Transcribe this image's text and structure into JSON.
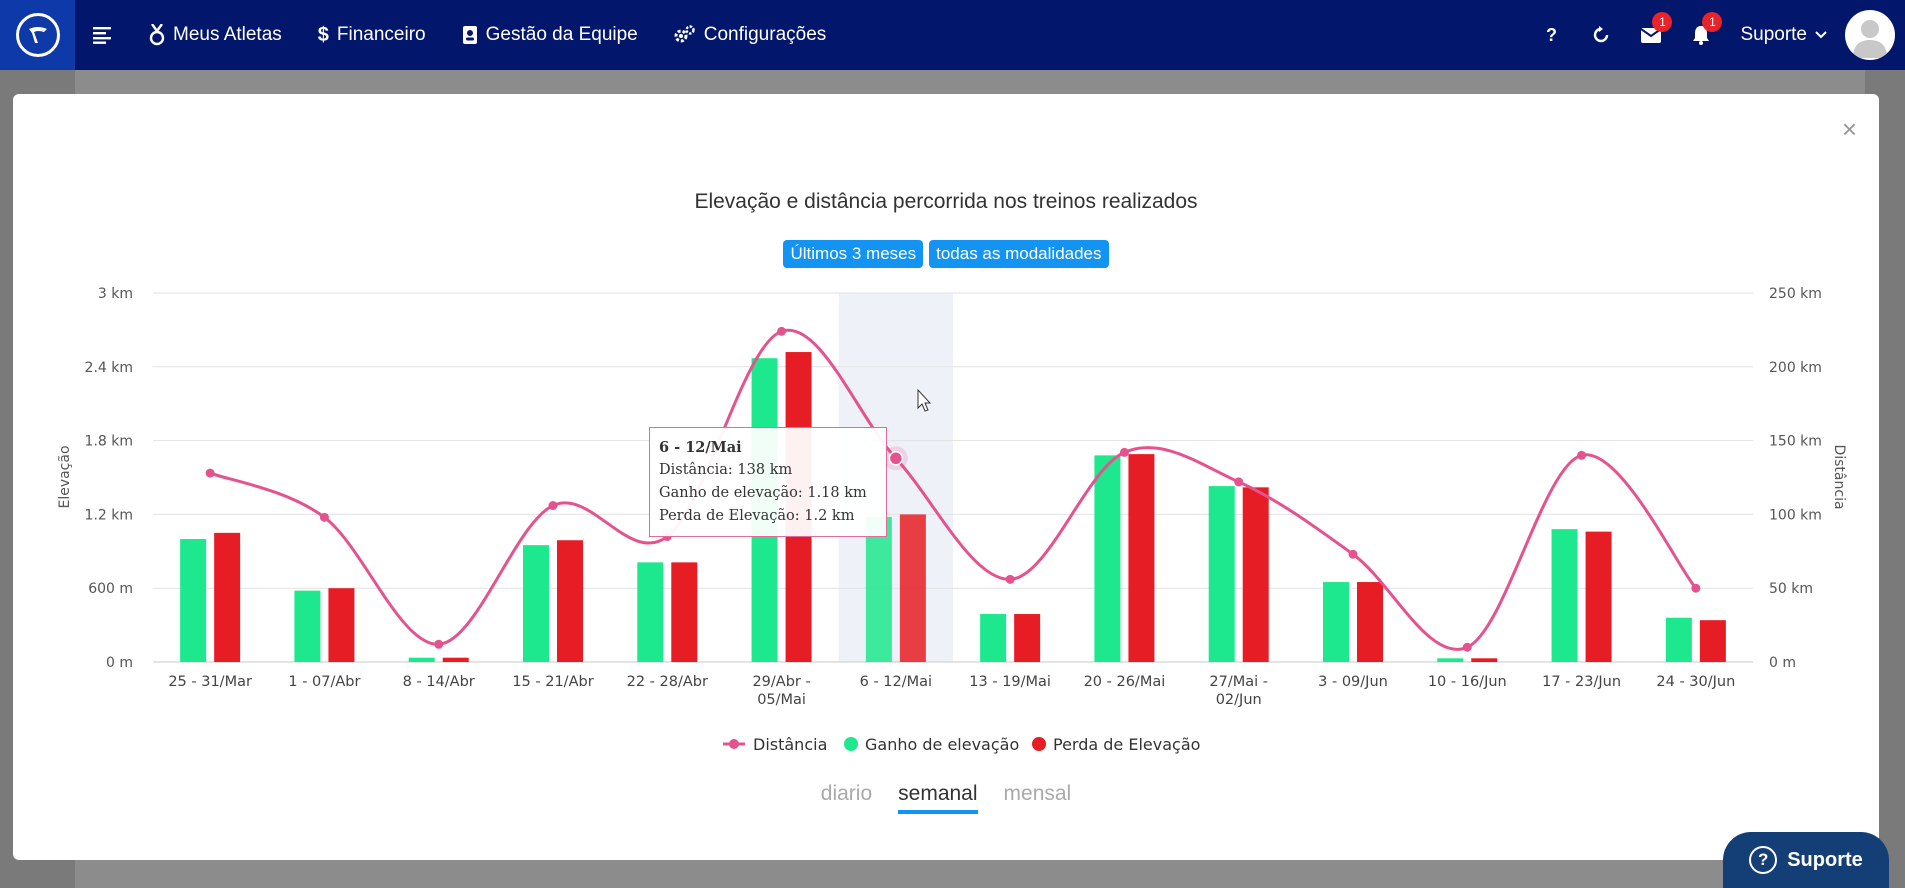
{
  "navbar": {
    "items": [
      {
        "label": "Meus Atletas"
      },
      {
        "label": "Financeiro"
      },
      {
        "label": "Gestão da Equipe"
      },
      {
        "label": "Configurações"
      }
    ],
    "help_label": "?",
    "messages_badge": "1",
    "notifications_badge": "1",
    "user_label": "Suporte"
  },
  "modal": {
    "close_label": "×",
    "title": "Elevação e distância percorrida nos treinos realizados",
    "filters": [
      "Últimos 3 meses",
      "todas as modalidades"
    ],
    "period_tabs": [
      "diario",
      "semanal",
      "mensal"
    ],
    "active_period": "semanal"
  },
  "tooltip": {
    "title": "6 - 12/Mai",
    "line1": "Distância: 138 km",
    "line2": "Ganho de elevação: 1.18 km",
    "line3": "Perda de Elevação: 1.2 km"
  },
  "support_button": {
    "label": "Suporte"
  },
  "colors": {
    "gain": "#1de88d",
    "loss": "#e71d25",
    "distance": "#e5538f",
    "navbar": "#02176b",
    "accent": "#1394f2"
  },
  "chart_data": {
    "type": "bar",
    "categories": [
      [
        "25 - 31/Mar"
      ],
      [
        "1 - 07/Abr"
      ],
      [
        "8 - 14/Abr"
      ],
      [
        "15 - 21/Abr"
      ],
      [
        "22 - 28/Abr"
      ],
      [
        "29/Abr -",
        "05/Mai"
      ],
      [
        "6 - 12/Mai"
      ],
      [
        "13 - 19/Mai"
      ],
      [
        "20 - 26/Mai"
      ],
      [
        "27/Mai -",
        "02/Jun"
      ],
      [
        "3 - 09/Jun"
      ],
      [
        "10 - 16/Jun"
      ],
      [
        "17 - 23/Jun"
      ],
      [
        "24 - 30/Jun"
      ]
    ],
    "series": [
      {
        "name": "Ganho de elevação",
        "axis": "left",
        "kind": "bar",
        "values": [
          1.0,
          0.58,
          0.035,
          0.95,
          0.81,
          2.47,
          1.18,
          0.39,
          1.68,
          1.43,
          0.65,
          0.03,
          1.08,
          0.36
        ]
      },
      {
        "name": "Perda de Elevação",
        "axis": "left",
        "kind": "bar",
        "values": [
          1.05,
          0.6,
          0.035,
          0.99,
          0.81,
          2.52,
          1.2,
          0.39,
          1.69,
          1.42,
          0.65,
          0.03,
          1.06,
          0.34
        ]
      },
      {
        "name": "Distância",
        "axis": "right",
        "kind": "line",
        "values": [
          128,
          98,
          12,
          106,
          85,
          224,
          138,
          56,
          142,
          122,
          73,
          10,
          140,
          50
        ]
      }
    ],
    "left_axis": {
      "label": "Elevação",
      "ticks": [
        "0 m",
        "600 m",
        "1.2 km",
        "1.8 km",
        "2.4 km",
        "3 km"
      ],
      "ylim": [
        0,
        3
      ]
    },
    "right_axis": {
      "label": "Distância",
      "ticks": [
        "0 m",
        "50 km",
        "100 km",
        "150 km",
        "200 km",
        "250 km"
      ],
      "ylim": [
        0,
        250
      ]
    },
    "highlight_index": 6,
    "grid": true,
    "legend_position": "bottom-center"
  }
}
